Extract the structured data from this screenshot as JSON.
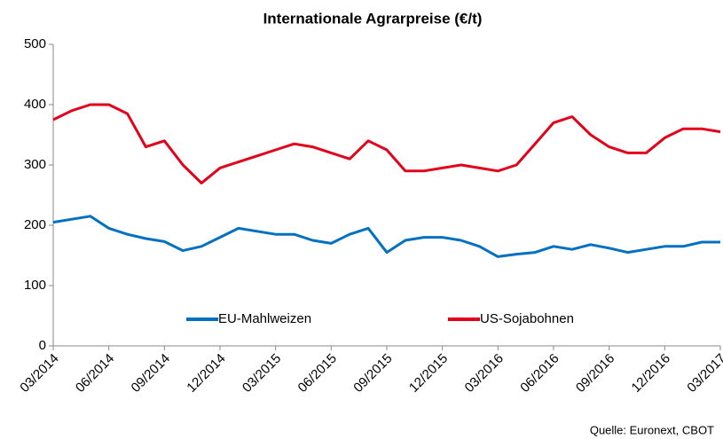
{
  "chart_data": {
    "type": "line",
    "title": "Internationale Agrarpreise (€/t)",
    "source": "Quelle: Euronext, CBOT",
    "x": [
      "03/2014",
      null,
      null,
      "06/2014",
      null,
      null,
      "09/2014",
      null,
      null,
      "12/2014",
      null,
      null,
      "03/2015",
      null,
      null,
      "06/2015",
      null,
      null,
      "09/2015",
      null,
      null,
      "12/2015",
      null,
      null,
      "03/2016",
      null,
      null,
      "06/2016",
      null,
      null,
      "09/2016",
      null,
      null,
      "12/2016",
      null,
      null,
      "03/2017"
    ],
    "series": [
      {
        "name": "EU-Mahlweizen",
        "color": "#0070c0",
        "values": [
          205,
          210,
          215,
          195,
          185,
          178,
          173,
          158,
          165,
          180,
          195,
          190,
          185,
          185,
          175,
          170,
          185,
          195,
          155,
          175,
          180,
          180,
          175,
          165,
          148,
          152,
          155,
          165,
          160,
          168,
          162,
          155,
          160,
          165,
          165,
          172,
          172
        ]
      },
      {
        "name": "US-Sojabohnen",
        "color": "#e2001a",
        "values": [
          375,
          390,
          400,
          400,
          385,
          330,
          340,
          300,
          270,
          295,
          305,
          315,
          325,
          335,
          330,
          320,
          310,
          340,
          325,
          290,
          290,
          295,
          300,
          295,
          290,
          300,
          335,
          370,
          380,
          350,
          330,
          320,
          320,
          345,
          360,
          360,
          355
        ]
      }
    ],
    "ylim": [
      0,
      500
    ],
    "yticks": [
      0,
      100,
      200,
      300,
      400,
      500
    ],
    "grid": false,
    "legend": "bottom"
  }
}
